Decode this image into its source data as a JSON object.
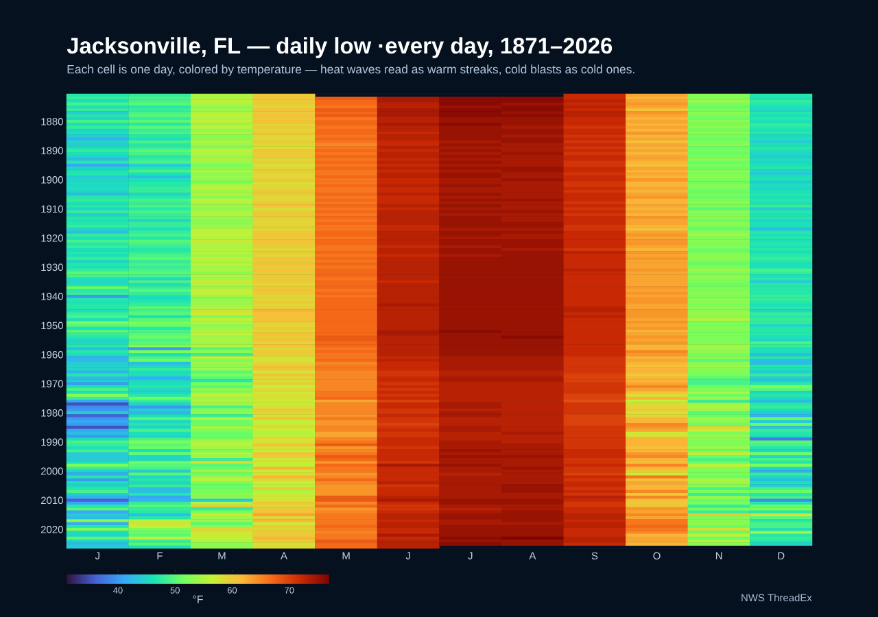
{
  "chart_data": {
    "type": "heatmap",
    "title": "Jacksonville, FL — daily low ·every day, 1871–2026",
    "subtitle": "Each cell is one day, colored by temperature — heat waves read as warm streaks, cold blasts as cold ones.",
    "categories": [
      "J",
      "F",
      "M",
      "A",
      "M",
      "J",
      "J",
      "A",
      "S",
      "O",
      "N",
      "D"
    ],
    "y_categories": [
      null,
      null,
      null,
      null,
      null,
      null,
      null,
      null,
      null,
      "1880",
      null,
      null,
      null,
      null,
      null,
      null,
      null,
      null,
      null,
      "1890",
      null,
      null,
      null,
      null,
      null,
      null,
      null,
      null,
      null,
      "1900",
      null,
      null,
      null,
      null,
      null,
      null,
      null,
      null,
      null,
      "1910",
      null,
      null,
      null,
      null,
      null,
      null,
      null,
      null,
      null,
      "1920",
      null,
      null,
      null,
      null,
      null,
      null,
      null,
      null,
      null,
      "1930",
      null,
      null,
      null,
      null,
      null,
      null,
      null,
      null,
      null,
      "1940",
      null,
      null,
      null,
      null,
      null,
      null,
      null,
      null,
      null,
      "1950",
      null,
      null,
      null,
      null,
      null,
      null,
      null,
      null,
      null,
      "1960",
      null,
      null,
      null,
      null,
      null,
      null,
      null,
      null,
      null,
      "1970",
      null,
      null,
      null,
      null,
      null,
      null,
      null,
      null,
      null,
      "1980",
      null,
      null,
      null,
      null,
      null,
      null,
      null,
      null,
      null,
      "1990",
      null,
      null,
      null,
      null,
      null,
      null,
      null,
      null,
      null,
      "2000",
      null,
      null,
      null,
      null,
      null,
      null,
      null,
      null,
      null,
      "2010",
      null,
      null,
      null,
      null,
      null,
      null,
      null,
      null,
      null,
      "2020",
      null,
      null,
      null,
      null,
      null,
      null
    ],
    "cells": [
      [
        47,
        48,
        55,
        60,
        null,
        null,
        null,
        null,
        72,
        63,
        53,
        47
      ],
      [
        48,
        49,
        55,
        61,
        68,
        74,
        76,
        76,
        72,
        62,
        52,
        46
      ],
      [
        46,
        49,
        56,
        60,
        67,
        74,
        76,
        76,
        73,
        63,
        54,
        48
      ],
      [
        49,
        50,
        55,
        60,
        67,
        73,
        76,
        75,
        72,
        64,
        52,
        47
      ],
      [
        46,
        47,
        53,
        59,
        66,
        73,
        75,
        76,
        73,
        63,
        51,
        46
      ],
      [
        48,
        48,
        54,
        61,
        68,
        74,
        76,
        76,
        72,
        61,
        52,
        45
      ],
      [
        44,
        49,
        55,
        60,
        67,
        74,
        76,
        75,
        73,
        64,
        53,
        47
      ],
      [
        47,
        50,
        56,
        61,
        68,
        74,
        76,
        76,
        73,
        63,
        52,
        46
      ],
      [
        45,
        48,
        55,
        60,
        66,
        73,
        75,
        75,
        72,
        62,
        51,
        47
      ],
      [
        49,
        50,
        56,
        61,
        67,
        73,
        75,
        75,
        72,
        63,
        53,
        46
      ],
      [
        46,
        47,
        54,
        59,
        67,
        74,
        76,
        75,
        72,
        62,
        52,
        48
      ],
      [
        48,
        50,
        56,
        60,
        66,
        73,
        75,
        74,
        71,
        63,
        53,
        47
      ],
      [
        45,
        48,
        53,
        59,
        67,
        73,
        75,
        75,
        72,
        62,
        51,
        46
      ],
      [
        46,
        49,
        55,
        61,
        67,
        72,
        75,
        75,
        72,
        64,
        53,
        47
      ],
      [
        44,
        47,
        53,
        59,
        66,
        73,
        75,
        74,
        71,
        62,
        52,
        45
      ],
      [
        42,
        46,
        53,
        59,
        67,
        73,
        75,
        75,
        72,
        63,
        51,
        46
      ],
      [
        45,
        49,
        55,
        60,
        66,
        72,
        74,
        75,
        71,
        61,
        52,
        44
      ],
      [
        44,
        47,
        54,
        59,
        65,
        72,
        75,
        74,
        72,
        63,
        53,
        46
      ],
      [
        46,
        48,
        53,
        58,
        66,
        73,
        74,
        74,
        71,
        62,
        51,
        47
      ],
      [
        48,
        50,
        56,
        61,
        67,
        72,
        75,
        74,
        72,
        63,
        52,
        46
      ],
      [
        46,
        49,
        55,
        60,
        66,
        73,
        74,
        75,
        71,
        62,
        51,
        45
      ],
      [
        45,
        47,
        54,
        60,
        67,
        73,
        75,
        74,
        72,
        63,
        52,
        44
      ],
      [
        43,
        48,
        55,
        59,
        66,
        72,
        74,
        74,
        72,
        63,
        53,
        46
      ],
      [
        47,
        49,
        54,
        60,
        67,
        73,
        75,
        74,
        71,
        62,
        51,
        45
      ],
      [
        41,
        44,
        52,
        58,
        66,
        72,
        74,
        74,
        71,
        61,
        52,
        46
      ],
      [
        45,
        47,
        53,
        59,
        67,
        73,
        75,
        75,
        72,
        63,
        51,
        47
      ],
      [
        46,
        49,
        55,
        60,
        66,
        72,
        74,
        75,
        72,
        62,
        53,
        45
      ],
      [
        47,
        46,
        53,
        59,
        66,
        73,
        75,
        74,
        71,
        63,
        52,
        44
      ],
      [
        44,
        43,
        54,
        59,
        67,
        73,
        75,
        74,
        72,
        62,
        53,
        46
      ],
      [
        45,
        46,
        53,
        60,
        66,
        72,
        74,
        75,
        72,
        64,
        52,
        46
      ],
      [
        46,
        47,
        52,
        58,
        66,
        72,
        74,
        74,
        71,
        62,
        51,
        44
      ],
      [
        45,
        47,
        55,
        59,
        67,
        73,
        75,
        74,
        71,
        62,
        53,
        46
      ],
      [
        46,
        48,
        56,
        59,
        66,
        72,
        74,
        74,
        72,
        63,
        52,
        45
      ],
      [
        45,
        48,
        54,
        60,
        66,
        72,
        74,
        74,
        71,
        62,
        51,
        46
      ],
      [
        43,
        45,
        55,
        60,
        67,
        73,
        75,
        74,
        72,
        63,
        52,
        47
      ],
      [
        47,
        47,
        53,
        59,
        66,
        72,
        74,
        74,
        72,
        64,
        51,
        46
      ],
      [
        48,
        49,
        56,
        59,
        67,
        72,
        75,
        75,
        72,
        62,
        52,
        47
      ],
      [
        46,
        48,
        55,
        60,
        66,
        72,
        74,
        74,
        71,
        62,
        53,
        46
      ],
      [
        47,
        49,
        54,
        61,
        67,
        73,
        75,
        74,
        72,
        63,
        52,
        48
      ],
      [
        45,
        47,
        53,
        58,
        66,
        72,
        74,
        74,
        71,
        62,
        50,
        44
      ],
      [
        48,
        49,
        55,
        60,
        67,
        73,
        75,
        75,
        72,
        63,
        53,
        47
      ],
      [
        44,
        48,
        55,
        60,
        66,
        73,
        74,
        74,
        71,
        62,
        52,
        46
      ],
      [
        47,
        48,
        54,
        60,
        67,
        73,
        75,
        74,
        72,
        64,
        53,
        47
      ],
      [
        46,
        45,
        53,
        59,
        66,
        73,
        75,
        74,
        72,
        63,
        51,
        45
      ],
      [
        47,
        48,
        53,
        59,
        67,
        73,
        75,
        75,
        72,
        63,
        53,
        46
      ],
      [
        48,
        48,
        54,
        60,
        66,
        72,
        75,
        75,
        71,
        62,
        52,
        46
      ],
      [
        45,
        46,
        55,
        59,
        66,
        72,
        74,
        74,
        71,
        61,
        51,
        43
      ],
      [
        43,
        48,
        56,
        60,
        67,
        73,
        75,
        75,
        72,
        63,
        53,
        47
      ],
      [
        48,
        49,
        56,
        61,
        67,
        73,
        75,
        74,
        72,
        64,
        54,
        46
      ],
      [
        46,
        47,
        55,
        60,
        66,
        73,
        74,
        74,
        72,
        63,
        52,
        47
      ],
      [
        49,
        50,
        57,
        61,
        67,
        73,
        75,
        75,
        72,
        64,
        53,
        46
      ],
      [
        47,
        49,
        55,
        60,
        67,
        73,
        75,
        75,
        72,
        64,
        52,
        47
      ],
      [
        48,
        48,
        55,
        60,
        66,
        72,
        74,
        75,
        72,
        63,
        53,
        46
      ],
      [
        46,
        47,
        55,
        59,
        66,
        73,
        75,
        74,
        71,
        62,
        51,
        47
      ],
      [
        47,
        48,
        56,
        60,
        67,
        73,
        75,
        75,
        73,
        64,
        52,
        46
      ],
      [
        46,
        49,
        54,
        59,
        66,
        72,
        74,
        75,
        72,
        63,
        53,
        47
      ],
      [
        48,
        50,
        56,
        61,
        67,
        73,
        75,
        75,
        72,
        64,
        53,
        48
      ],
      [
        45,
        48,
        55,
        60,
        66,
        73,
        75,
        75,
        72,
        63,
        52,
        47
      ],
      [
        47,
        49,
        56,
        61,
        67,
        73,
        75,
        75,
        72,
        63,
        51,
        46
      ],
      [
        46,
        48,
        54,
        60,
        66,
        73,
        75,
        75,
        72,
        63,
        52,
        46
      ],
      [
        48,
        49,
        55,
        61,
        67,
        73,
        75,
        75,
        73,
        64,
        54,
        49
      ],
      [
        50,
        50,
        53,
        60,
        67,
        73,
        75,
        75,
        72,
        63,
        52,
        48
      ],
      [
        49,
        49,
        55,
        60,
        67,
        73,
        75,
        75,
        72,
        63,
        53,
        46
      ],
      [
        46,
        45,
        54,
        60,
        66,
        73,
        75,
        75,
        72,
        63,
        53,
        47
      ],
      [
        45,
        49,
        57,
        60,
        67,
        72,
        75,
        75,
        72,
        63,
        52,
        44
      ],
      [
        46,
        46,
        55,
        59,
        67,
        73,
        75,
        75,
        72,
        63,
        51,
        47
      ],
      [
        51,
        48,
        54,
        60,
        67,
        73,
        75,
        75,
        72,
        64,
        52,
        47
      ],
      [
        47,
        50,
        57,
        61,
        66,
        73,
        75,
        75,
        72,
        63,
        52,
        47
      ],
      [
        48,
        48,
        56,
        60,
        67,
        73,
        75,
        75,
        72,
        64,
        53,
        47
      ],
      [
        40,
        46,
        54,
        59,
        66,
        73,
        75,
        75,
        72,
        63,
        52,
        48
      ],
      [
        47,
        46,
        53,
        59,
        67,
        73,
        75,
        75,
        72,
        64,
        53,
        48
      ],
      [
        46,
        47,
        54,
        60,
        67,
        73,
        75,
        75,
        72,
        64,
        53,
        47
      ],
      [
        47,
        48,
        54,
        59,
        67,
        74,
        75,
        75,
        72,
        63,
        52,
        46
      ],
      [
        47,
        50,
        55,
        60,
        67,
        73,
        75,
        75,
        73,
        63,
        53,
        47
      ],
      [
        46,
        49,
        58,
        62,
        67,
        73,
        75,
        75,
        73,
        64,
        53,
        45
      ],
      [
        48,
        50,
        57,
        61,
        67,
        73,
        75,
        75,
        72,
        64,
        54,
        48
      ],
      [
        49,
        46,
        52,
        61,
        67,
        73,
        75,
        75,
        73,
        64,
        53,
        47
      ],
      [
        46,
        50,
        56,
        61,
        67,
        73,
        75,
        75,
        72,
        63,
        55,
        48
      ],
      [
        52,
        52,
        55,
        60,
        67,
        73,
        75,
        75,
        72,
        64,
        52,
        48
      ],
      [
        50,
        51,
        53,
        59,
        67,
        73,
        75,
        75,
        72,
        63,
        52,
        45
      ],
      [
        46,
        47,
        54,
        60,
        67,
        73,
        75,
        75,
        72,
        64,
        53,
        47
      ],
      [
        50,
        49,
        55,
        59,
        67,
        74,
        76,
        75,
        72,
        62,
        52,
        47
      ],
      [
        48,
        50,
        56,
        61,
        67,
        74,
        75,
        75,
        72,
        63,
        52,
        47
      ],
      [
        47,
        51,
        54,
        60,
        68,
        73,
        75,
        76,
        72,
        64,
        52,
        46
      ],
      [
        45,
        49,
        55,
        61,
        68,
        73,
        75,
        75,
        72,
        63,
        52,
        45
      ],
      [
        45,
        50,
        54,
        59,
        67,
        73,
        75,
        75,
        72,
        64,
        52,
        49
      ],
      [
        47,
        52,
        55,
        61,
        67,
        73,
        75,
        75,
        72,
        62,
        54,
        48
      ],
      [
        43,
        40,
        50,
        59,
        66,
        73,
        75,
        75,
        72,
        62,
        54,
        46
      ],
      [
        47,
        52,
        53,
        60,
        67,
        73,
        75,
        75,
        72,
        65,
        53,
        46
      ],
      [
        46,
        46,
        48,
        60,
        66,
        73,
        75,
        75,
        72,
        64,
        52,
        43
      ],
      [
        42,
        49,
        56,
        58,
        66,
        72,
        74,
        74,
        71,
        62,
        53,
        47
      ],
      [
        43,
        51,
        52,
        58,
        67,
        73,
        74,
        74,
        71,
        63,
        50,
        43
      ],
      [
        44,
        43,
        54,
        59,
        65,
        72,
        74,
        74,
        71,
        62,
        53,
        43
      ],
      [
        45,
        45,
        53,
        61,
        66,
        72,
        74,
        74,
        71,
        61,
        54,
        47
      ],
      [
        45,
        48,
        54,
        61,
        66,
        72,
        74,
        74,
        71,
        62,
        53,
        46
      ],
      [
        42,
        46,
        50,
        57,
        65,
        71,
        73,
        73,
        71,
        62,
        52,
        44
      ],
      [
        47,
        46,
        52,
        61,
        65,
        71,
        73,
        73,
        70,
        60,
        52,
        48
      ],
      [
        43,
        42,
        50,
        59,
        65,
        72,
        74,
        74,
        70,
        62,
        50,
        44
      ],
      [
        44,
        45,
        47,
        58,
        65,
        72,
        74,
        74,
        70,
        62,
        49,
        44
      ],
      [
        40,
        46,
        52,
        60,
        65,
        71,
        73,
        73,
        71,
        63,
        49,
        47
      ],
      [
        46,
        47,
        50,
        56,
        65,
        72,
        73,
        73,
        71,
        65,
        51,
        52
      ],
      [
        49,
        45,
        53,
        59,
        65,
        71,
        73,
        73,
        71,
        63,
        52,
        50
      ],
      [
        46,
        45,
        53,
        57,
        66,
        72,
        73,
        73,
        71,
        61,
        55,
        45
      ],
      [
        53,
        47,
        56,
        58,
        66,
        71,
        73,
        73,
        70,
        58,
        51,
        47
      ],
      [
        48,
        51,
        54,
        58,
        67,
        72,
        73,
        73,
        70,
        62,
        54,
        45
      ],
      [
        41,
        48,
        55,
        57,
        63,
        70,
        73,
        73,
        69,
        56,
        48,
        43
      ],
      [
        35,
        45,
        54,
        57,
        65,
        72,
        74,
        73,
        71,
        59,
        54,
        47
      ],
      [
        39,
        40,
        49,
        58,
        65,
        72,
        74,
        73,
        71,
        59,
        55,
        48
      ],
      [
        40,
        44,
        53,
        60,
        65,
        71,
        73,
        73,
        71,
        60,
        54,
        46
      ],
      [
        44,
        42,
        53,
        59,
        65,
        71,
        74,
        73,
        71,
        58,
        50,
        44
      ],
      [
        36,
        46,
        48,
        58,
        64,
        72,
        74,
        73,
        70,
        59,
        51,
        42
      ],
      [
        40,
        50,
        55,
        61,
        66,
        71,
        73,
        73,
        70,
        62,
        54,
        51
      ],
      [
        41,
        45,
        51,
        56,
        64,
        71,
        73,
        73,
        70,
        62,
        53,
        44
      ],
      [
        40,
        47,
        51,
        57,
        64,
        70,
        73,
        73,
        70,
        65,
        51,
        51
      ],
      [
        35,
        45,
        55,
        58,
        65,
        71,
        74,
        73,
        71,
        64,
        59,
        43
      ],
      [
        41,
        49,
        52,
        56,
        65,
        72,
        74,
        73,
        71,
        63,
        57,
        48
      ],
      [
        43,
        46,
        51,
        55,
        63,
        71,
        73,
        74,
        71,
        57,
        52,
        47
      ],
      [
        40,
        45,
        51,
        57,
        63,
        71,
        73,
        73,
        71,
        58,
        54,
        46
      ],
      [
        46,
        49,
        52,
        58,
        65,
        72,
        73,
        73,
        71,
        62,
        53,
        38
      ],
      [
        49,
        52,
        55,
        58,
        66,
        72,
        74,
        73,
        71,
        62,
        52,
        50
      ],
      [
        48,
        50,
        56,
        61,
        68,
        72,
        74,
        74,
        71,
        62,
        52,
        49
      ],
      [
        46,
        51,
        54,
        58,
        64,
        71,
        74,
        74,
        71,
        61,
        54,
        47
      ],
      [
        49,
        46,
        52,
        56,
        65,
        72,
        75,
        74,
        72,
        62,
        51,
        45
      ],
      [
        44,
        51,
        55,
        61,
        66,
        72,
        74,
        74,
        72,
        64,
        57,
        52
      ],
      [
        44,
        45,
        54,
        60,
        68,
        72,
        75,
        75,
        72,
        65,
        51,
        45
      ],
      [
        44,
        45,
        48,
        57,
        67,
        72,
        74,
        74,
        71,
        62,
        49,
        49
      ],
      [
        46,
        51,
        58,
        57,
        64,
        71,
        74,
        74,
        71,
        61,
        51,
        47
      ],
      [
        52,
        50,
        50,
        56,
        67,
        74,
        75,
        74,
        72,
        65,
        56,
        52
      ],
      [
        48,
        49,
        51,
        62,
        66,
        72,
        74,
        75,
        71,
        62,
        53,
        45
      ],
      [
        45,
        44,
        54,
        57,
        66,
        72,
        74,
        74,
        71,
        60,
        52,
        41
      ],
      [
        41,
        50,
        51,
        58,
        64,
        72,
        73,
        74,
        70,
        57,
        52,
        48
      ],
      [
        47,
        45,
        54,
        62,
        65,
        72,
        74,
        74,
        72,
        66,
        51,
        45
      ],
      [
        40,
        47,
        56,
        59,
        67,
        72,
        74,
        74,
        71,
        61,
        55,
        43
      ],
      [
        46,
        45,
        52,
        56,
        65,
        73,
        74,
        74,
        72,
        63,
        54,
        46
      ],
      [
        45,
        48,
        51,
        56,
        64,
        71,
        74,
        75,
        72,
        62,
        53,
        44
      ],
      [
        47,
        43,
        51,
        60,
        64,
        72,
        74,
        75,
        71,
        62,
        49,
        49
      ],
      [
        49,
        43,
        52,
        55,
        64,
        72,
        74,
        75,
        72,
        65,
        52,
        51
      ],
      [
        44,
        47,
        53,
        57,
        64,
        72,
        74,
        74,
        71,
        60,
        48,
        47
      ],
      [
        42,
        41,
        53,
        57,
        68,
        73,
        74,
        74,
        73,
        65,
        54,
        49
      ],
      [
        36,
        42,
        44,
        58,
        68,
        74,
        75,
        75,
        72,
        61,
        51,
        39
      ],
      [
        41,
        48,
        55,
        60,
        65,
        72,
        75,
        75,
        71,
        60,
        52,
        47
      ],
      [
        47,
        50,
        60,
        59,
        67,
        71,
        74,
        74,
        71,
        61,
        48,
        51
      ],
      [
        50,
        48,
        48,
        60,
        64,
        71,
        73,
        74,
        72,
        64,
        52,
        52
      ],
      [
        41,
        47,
        52,
        61,
        65,
        72,
        74,
        75,
        72,
        63,
        48,
        47
      ],
      [
        44,
        43,
        57,
        63,
        66,
        73,
        75,
        75,
        73,
        65,
        60,
        58
      ],
      [
        43,
        47,
        54,
        59,
        66,
        73,
        75,
        75,
        73,
        63,
        52,
        50
      ],
      [
        53,
        55,
        54,
        62,
        66,
        72,
        74,
        75,
        72,
        66,
        53,
        47
      ],
      [
        41,
        58,
        50,
        57,
        66,
        73,
        74,
        74,
        73,
        66,
        53,
        49
      ],
      [
        47,
        56,
        53,
        60,
        67,
        73,
        75,
        75,
        73,
        67,
        51,
        49
      ],
      [
        52,
        52,
        59,
        59,
        66,
        72,
        75,
        75,
        72,
        66,
        58,
        46
      ],
      [
        46,
        51,
        57,
        60,
        65,
        72,
        75,
        75,
        72,
        65,
        51,
        54
      ],
      [
        45,
        50,
        57,
        60,
        66,
        74,
        75,
        75,
        72,
        62,
        56,
        47
      ],
      [
        50,
        56,
        56,
        62,
        66,
        72,
        76,
        77,
        73,
        63,
        51,
        48
      ],
      [
        45,
        48,
        55,
        60,
        68,
        73,
        75,
        75,
        73,
        63,
        55,
        47
      ],
      [
        43,
        50,
        53,
        58,
        67,
        73,
        76,
        75,
        72,
        62,
        53,
        45
      ],
      [
        44,
        46,
        53,
        59,
        67,
        73,
        null,
        null,
        null,
        null,
        null,
        null
      ]
    ],
    "clim": [
      31,
      77
    ],
    "cticks": [
      40,
      50,
      60,
      70
    ],
    "clabel": "°F",
    "annotations": [
      "NWS ThreadEx"
    ]
  }
}
